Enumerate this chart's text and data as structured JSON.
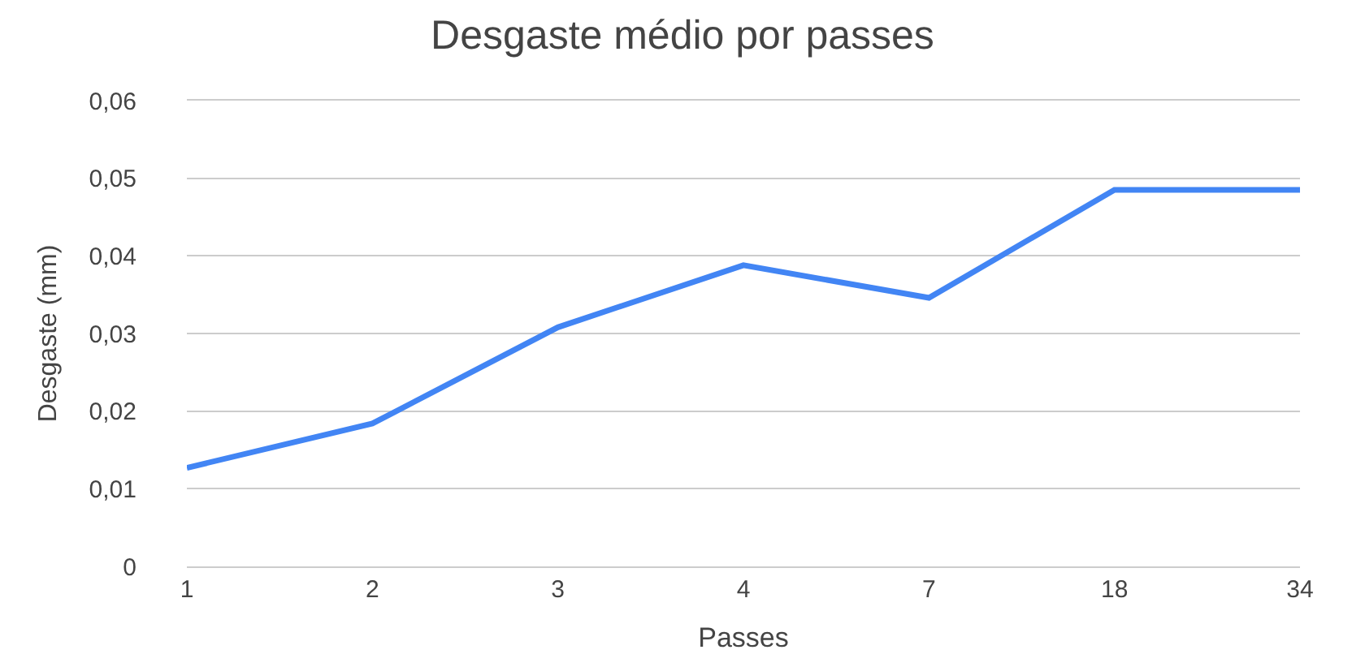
{
  "chart_data": {
    "type": "line",
    "title": "Desgaste médio por passes",
    "xlabel": "Passes",
    "ylabel": "Desgaste (mm)",
    "categories": [
      "1",
      "2",
      "3",
      "4",
      "7",
      "18",
      "34"
    ],
    "series": [
      {
        "color": "#4285f4",
        "values": [
          0.0127,
          0.0184,
          0.0308,
          0.0388,
          0.0346,
          0.0485,
          0.0485
        ]
      }
    ],
    "ylim": [
      0,
      0.06
    ],
    "yticks": [
      0,
      {
        "value": 0.01,
        "label": "0,01"
      },
      {
        "value": 0.02,
        "label": "0,02"
      },
      {
        "value": 0.03,
        "label": "0,03"
      },
      {
        "value": 0.04,
        "label": "0,04"
      },
      {
        "value": 0.05,
        "label": "0,05"
      },
      {
        "value": 0.06,
        "label": "0,06"
      }
    ],
    "grid": "y",
    "marker": "none",
    "line_style": "solid"
  }
}
